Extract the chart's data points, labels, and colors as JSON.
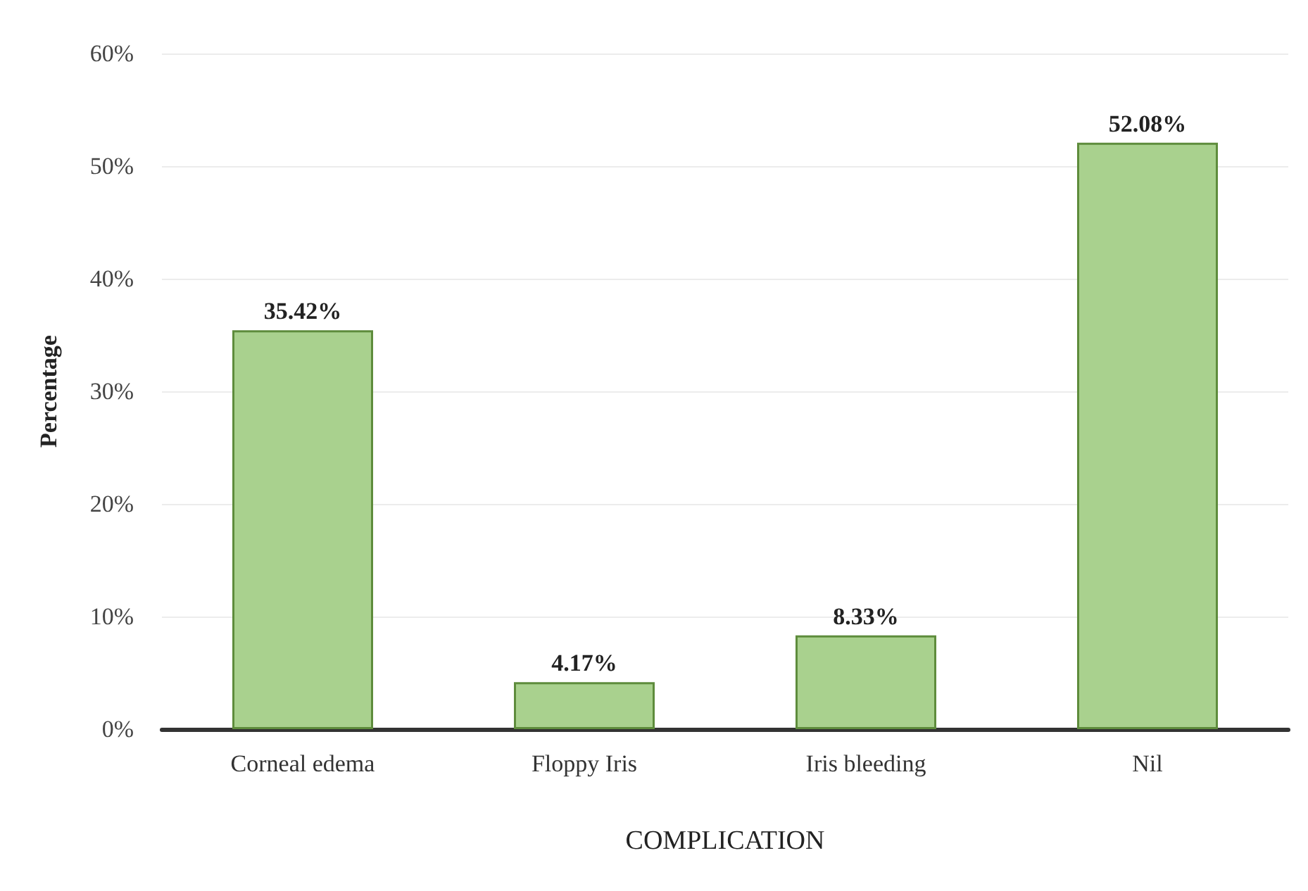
{
  "chart_data": {
    "type": "bar",
    "xlabel": "COMPLICATION",
    "ylabel": "Percentage",
    "categories": [
      "Corneal edema",
      "Floppy Iris",
      "Iris bleeding",
      "Nil"
    ],
    "values": [
      35.42,
      4.17,
      8.33,
      52.08
    ],
    "value_labels": [
      "35.42%",
      "4.17%",
      "8.33%",
      "52.08%"
    ],
    "color": "#a9d18e",
    "ylim": [
      0,
      60
    ],
    "yticks": [
      {
        "value": 0,
        "label": "0%"
      },
      {
        "value": 10,
        "label": "10%"
      },
      {
        "value": 20,
        "label": "20%"
      },
      {
        "value": 30,
        "label": "30%"
      },
      {
        "value": 40,
        "label": "40%"
      },
      {
        "value": 50,
        "label": "50%"
      },
      {
        "value": 60,
        "label": "60%"
      }
    ],
    "grid": "y"
  }
}
